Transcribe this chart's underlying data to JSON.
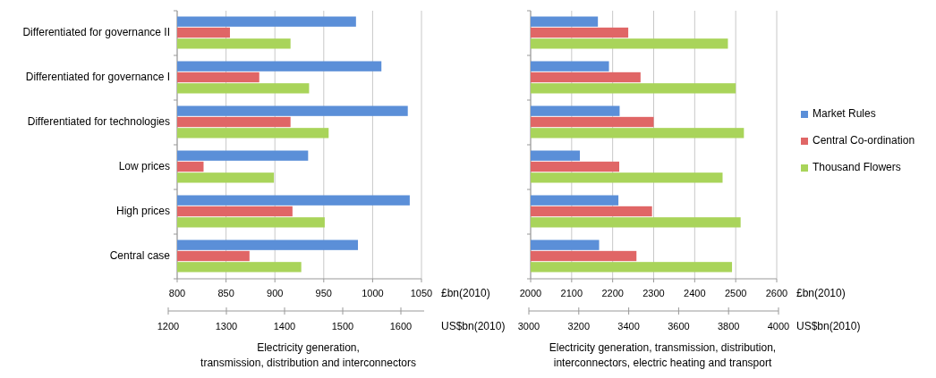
{
  "chart_data": [
    {
      "type": "bar",
      "orientation": "horizontal",
      "title": "Electricity generation,\ntransmission, distribution and interconnectors",
      "xlabel": "£bn(2010)",
      "x2label": "US$bn(2010)",
      "categories": [
        "Differentiated for governance II",
        "Differentiated for governance I",
        "Differentiated for technologies",
        "Low  prices",
        "High prices",
        "Central case"
      ],
      "series": [
        {
          "color": "#5b8fd8",
          "values": [
            983,
            1009,
            1036,
            934,
            1038,
            985
          ]
        },
        {
          "color": "#e06666",
          "values": [
            854,
            884,
            916,
            827,
            918,
            874
          ]
        },
        {
          "color": "#a9d45a",
          "values": [
            916,
            935,
            955,
            899,
            951,
            927
          ]
        }
      ],
      "xlim": [
        800,
        1050
      ],
      "xticks": [
        800,
        850,
        900,
        950,
        1000,
        1050
      ],
      "x2lim": [
        1200,
        1640
      ],
      "x2ticks": [
        1200,
        1300,
        1400,
        1500,
        1600
      ],
      "grid": "x"
    },
    {
      "type": "bar",
      "orientation": "horizontal",
      "title": "Electricity generation, transmission, distribution,\ninterconnectors, electric heating and transport",
      "xlabel": "£bn(2010)",
      "x2label": "US$bn(2010)",
      "categories": [
        null,
        null,
        null,
        null,
        null,
        null
      ],
      "series": [
        {
          "name": "Market Rules",
          "color": "#5b8fd8",
          "values": [
            2164,
            2191,
            2217,
            2120,
            2214,
            2167
          ]
        },
        {
          "name": "Central Co-ordination",
          "color": "#e06666",
          "values": [
            2238,
            2268,
            2300,
            2216,
            2296,
            2258
          ]
        },
        {
          "name": "Thousand Flowers",
          "color": "#a9d45a",
          "values": [
            2481,
            2500,
            2520,
            2468,
            2512,
            2491
          ]
        }
      ],
      "xlim": [
        2000,
        2600
      ],
      "xticks": [
        2000,
        2100,
        2200,
        2300,
        2400,
        2500,
        2600
      ],
      "x2lim": [
        3000,
        4000
      ],
      "x2ticks": [
        3000,
        3200,
        3400,
        3600,
        3800,
        4000
      ],
      "grid": "x",
      "tick_labels": "x",
      "legend": "right"
    }
  ]
}
